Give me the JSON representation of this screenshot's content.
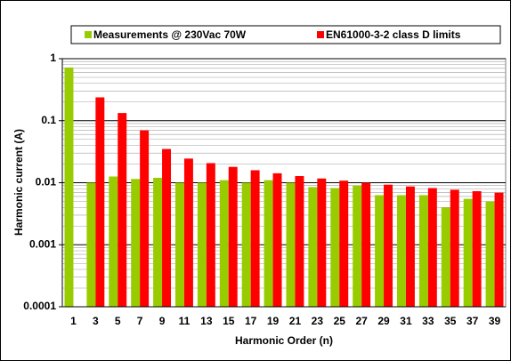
{
  "chart_data": {
    "type": "bar",
    "log_scale": true,
    "grid": true,
    "legend_position": "top",
    "x_label": "Harmonic Order (n)",
    "y_label": "Harmonic current (A)",
    "categories": [
      1,
      3,
      5,
      7,
      9,
      11,
      13,
      15,
      17,
      19,
      21,
      23,
      25,
      27,
      29,
      31,
      33,
      35,
      37,
      39
    ],
    "series": [
      {
        "name": "Measurements @ 230Vac 70W",
        "color": "#99cc00",
        "values": [
          0.72,
          0.01,
          0.0126,
          0.0115,
          0.012,
          0.01,
          0.01,
          0.011,
          0.01,
          0.011,
          0.01,
          0.0085,
          0.0082,
          0.009,
          0.0063,
          0.0063,
          0.0063,
          0.004,
          0.0055,
          0.005
        ]
      },
      {
        "name": "EN61000-3-2 class D limits",
        "color": "#ff0000",
        "values": [
          null,
          0.238,
          0.133,
          0.07,
          0.035,
          0.0245,
          0.0207,
          0.018,
          0.0159,
          0.0142,
          0.0128,
          0.0117,
          0.0108,
          0.01,
          0.0093,
          0.0087,
          0.0082,
          0.0077,
          0.0073,
          0.0069
        ]
      }
    ],
    "ylim": [
      0.0001,
      1
    ],
    "yticks": [
      0.0001,
      0.001,
      0.01,
      0.1,
      1
    ]
  }
}
